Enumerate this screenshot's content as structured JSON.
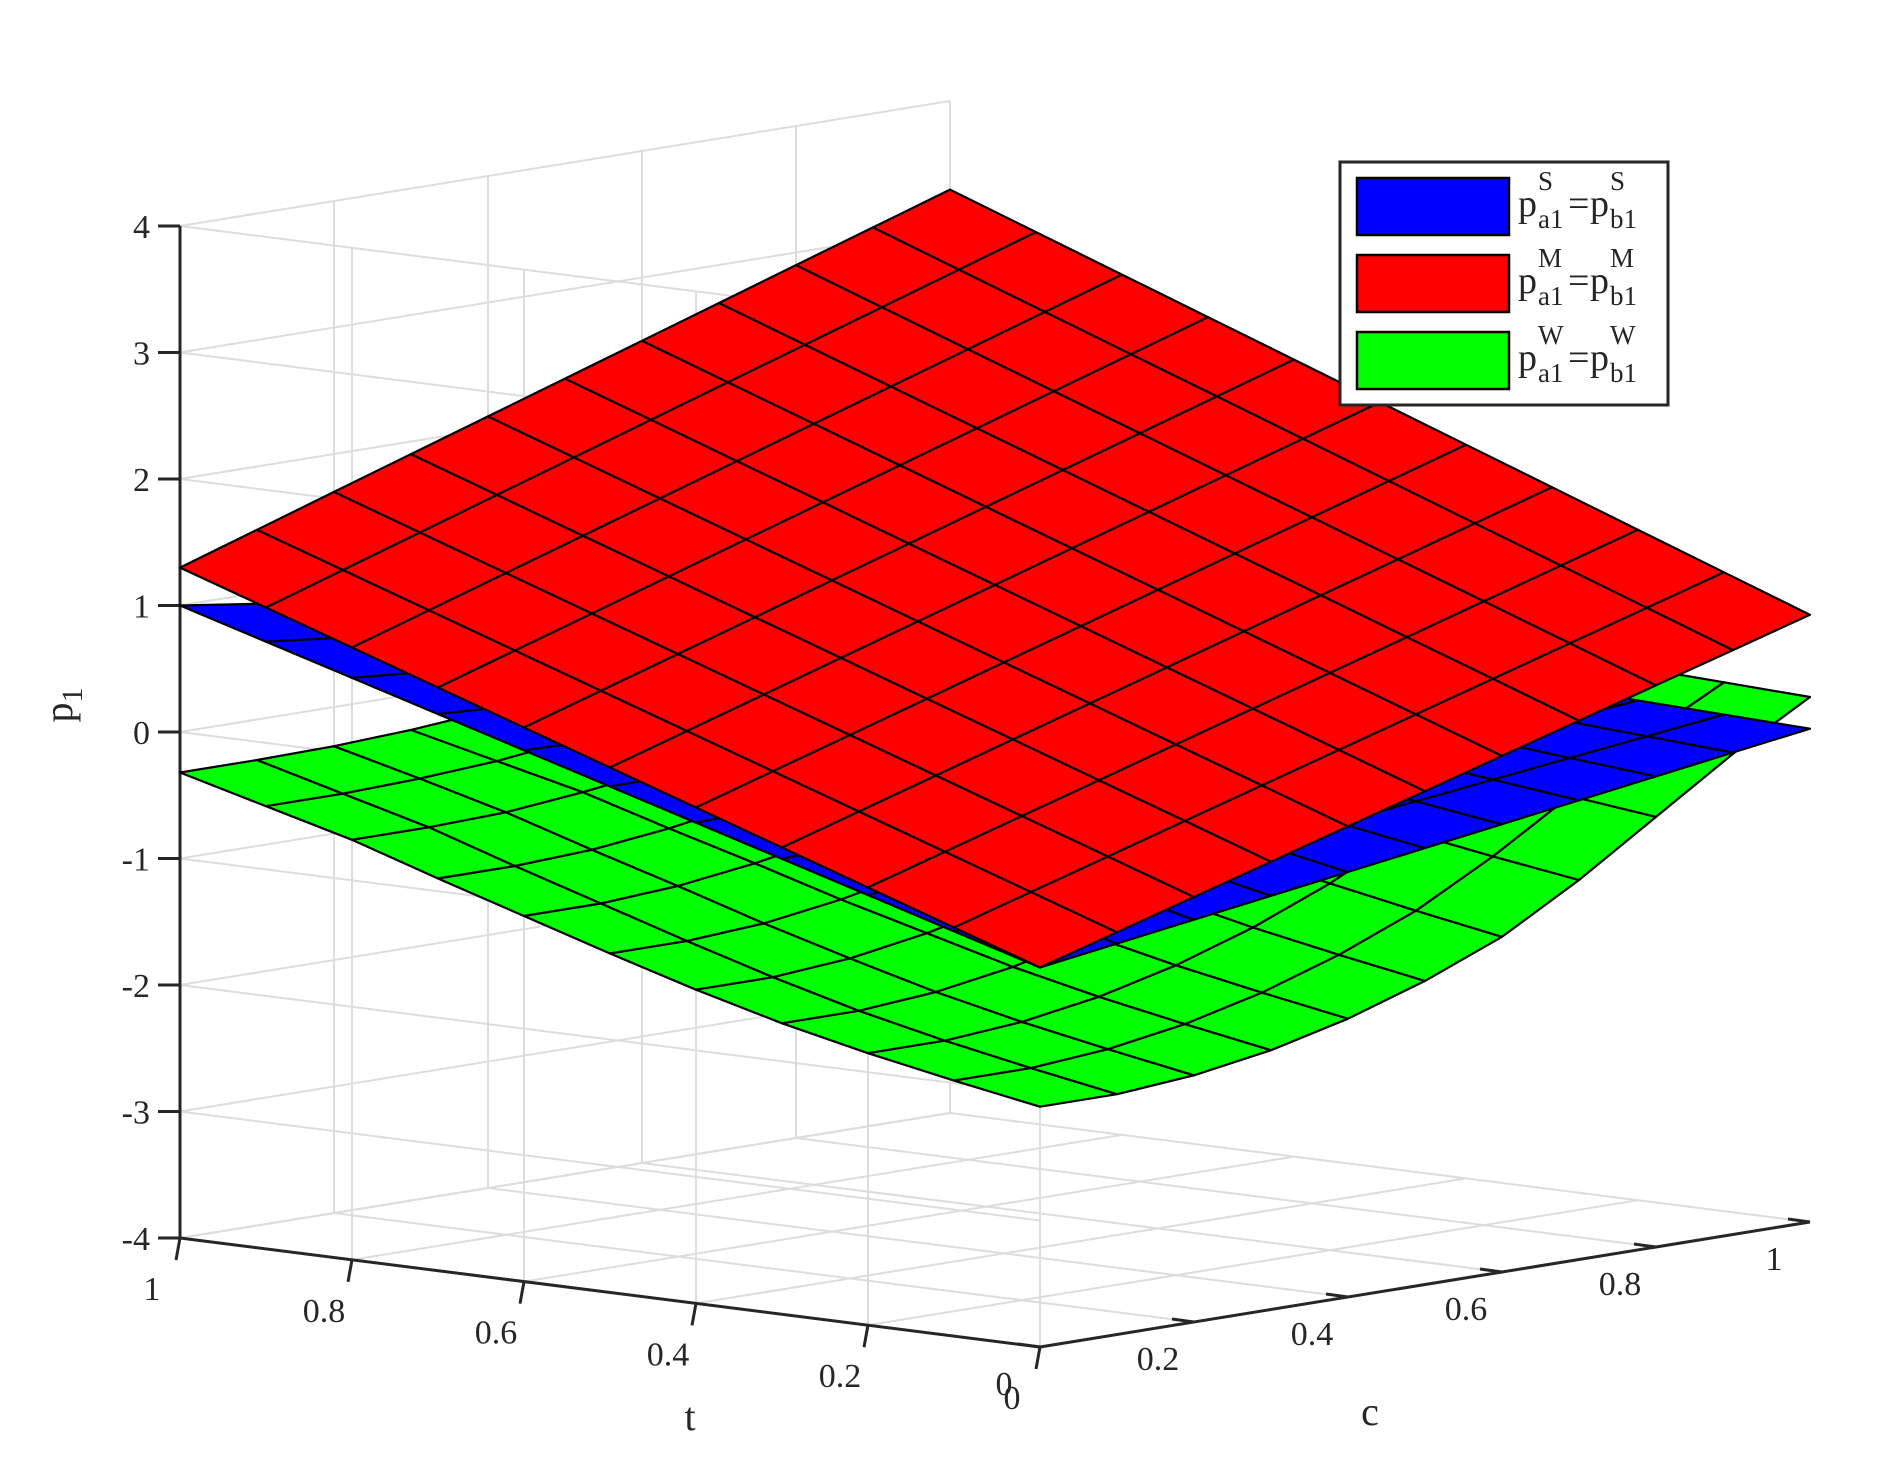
{
  "chart_data": {
    "type": "surface",
    "title": "",
    "xlabel": "c",
    "ylabel": "t",
    "zlabel": "p",
    "zlabel_subscript": "1",
    "xlim": [
      0,
      1
    ],
    "ylim": [
      0,
      1
    ],
    "zlim": [
      -4,
      4
    ],
    "x_ticks": [
      "0",
      "0.2",
      "0.4",
      "0.6",
      "0.8",
      "1"
    ],
    "y_ticks": [
      "0",
      "0.2",
      "0.4",
      "0.6",
      "0.8",
      "1"
    ],
    "z_ticks": [
      "-4",
      "-3",
      "-2",
      "-1",
      "0",
      "1",
      "2",
      "3",
      "4"
    ],
    "grid": true,
    "legend_position": "top-right",
    "colors": {
      "blue": "#0000ff",
      "red": "#ff0000",
      "green": "#00ff00",
      "edge": "#000000"
    },
    "grid_points": [
      0,
      0.1,
      0.2,
      0.3,
      0.4,
      0.5,
      0.6,
      0.7,
      0.8,
      0.9,
      1
    ],
    "series": [
      {
        "legend": {
          "a_base": "p",
          "a_sup": "S",
          "a_sub": "a1",
          "eq": "=",
          "b_base": "p",
          "b_sup": "S",
          "b_sub": "b1"
        },
        "color": "#0000ff",
        "surface": "plane",
        "corners": {
          "c0_t0": -1.0,
          "c1_t0": -0.1,
          "c0_t1": 1.0,
          "c1_t1": 0.15
        }
      },
      {
        "legend": {
          "a_base": "p",
          "a_sup": "M",
          "a_sub": "a1",
          "eq": "=",
          "b_base": "p",
          "b_sup": "M",
          "b_sub": "b1"
        },
        "color": "#ff0000",
        "surface": "plane",
        "corners": {
          "c0_t0": -1.0,
          "c1_t0": 0.8,
          "c0_t1": 1.3,
          "c1_t1": 3.3
        }
      },
      {
        "legend": {
          "a_base": "p",
          "a_sup": "W",
          "a_sub": "a1",
          "eq": "=",
          "b_base": "p",
          "b_sup": "W",
          "b_sub": "b1"
        },
        "color": "#00ff00",
        "surface": "grid",
        "rows_by_t": [
          [
            -2.1,
            -2.1,
            -2.05,
            -1.95,
            -1.8,
            -1.6,
            -1.35,
            -1.0,
            -0.6,
            -0.2,
            0.15
          ],
          [
            -1.98,
            -1.98,
            -1.93,
            -1.83,
            -1.68,
            -1.48,
            -1.23,
            -0.9,
            -0.52,
            -0.14,
            0.18
          ],
          [
            -1.85,
            -1.85,
            -1.8,
            -1.7,
            -1.55,
            -1.35,
            -1.1,
            -0.79,
            -0.44,
            -0.07,
            0.21
          ],
          [
            -1.7,
            -1.7,
            -1.65,
            -1.55,
            -1.4,
            -1.2,
            -0.96,
            -0.67,
            -0.35,
            0.0,
            0.24
          ],
          [
            -1.52,
            -1.52,
            -1.47,
            -1.37,
            -1.23,
            -1.05,
            -0.82,
            -0.55,
            -0.26,
            0.07,
            0.26
          ],
          [
            -1.32,
            -1.32,
            -1.28,
            -1.19,
            -1.06,
            -0.89,
            -0.68,
            -0.44,
            -0.17,
            0.13,
            0.28
          ],
          [
            -1.11,
            -1.11,
            -1.07,
            -0.99,
            -0.88,
            -0.73,
            -0.55,
            -0.33,
            -0.09,
            0.19,
            0.3
          ],
          [
            -0.9,
            -0.9,
            -0.87,
            -0.8,
            -0.7,
            -0.57,
            -0.41,
            -0.22,
            -0.01,
            0.24,
            0.32
          ],
          [
            -0.68,
            -0.68,
            -0.66,
            -0.6,
            -0.52,
            -0.41,
            -0.28,
            -0.12,
            0.06,
            0.28,
            0.34
          ],
          [
            -0.5,
            -0.5,
            -0.48,
            -0.44,
            -0.37,
            -0.29,
            -0.18,
            -0.05,
            0.1,
            0.3,
            0.35
          ],
          [
            -0.32,
            -0.32,
            -0.31,
            -0.28,
            -0.23,
            -0.17,
            -0.09,
            0.01,
            0.12,
            0.32,
            0.36
          ]
        ]
      }
    ]
  }
}
